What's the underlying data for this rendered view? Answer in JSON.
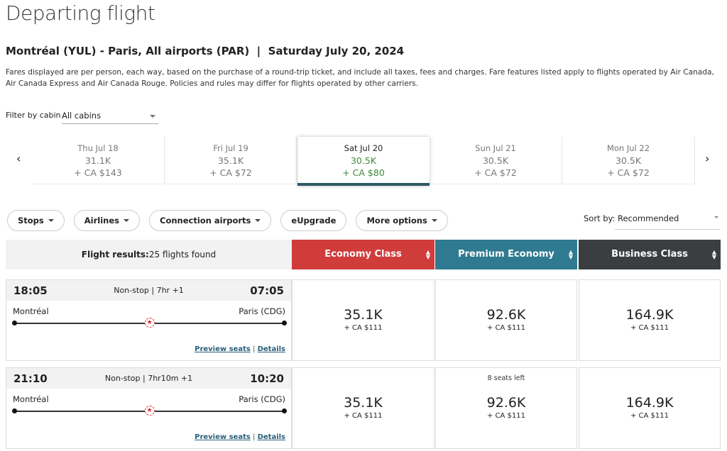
{
  "title": "Departing flight",
  "route": "Montréal (YUL) - Paris, All airports (PAR)  |  Saturday July 20, 2024",
  "description": "Fares displayed are per person, each way, based on the purchase of a round-trip ticket, and include all taxes, fees and charges. Fare features listed apply to flights operated by Air Canada, Air Canada Express and Air Canada Rouge. Policies and rules may differ for flights operated by other carriers.",
  "filter": {
    "label": "Filter by cabin",
    "value": "All cabins"
  },
  "dates": [
    {
      "day": "Thu Jul 18",
      "points": "31.1K",
      "cash": "+ CA $143",
      "selected": false
    },
    {
      "day": "Fri Jul 19",
      "points": "35.1K",
      "cash": "+ CA $72",
      "selected": false
    },
    {
      "day": "Sat Jul 20",
      "points": "30.5K",
      "cash": "+ CA $80",
      "selected": true
    },
    {
      "day": "Sun Jul 21",
      "points": "30.5K",
      "cash": "+ CA $72",
      "selected": false
    },
    {
      "day": "Mon Jul 22",
      "points": "30.5K",
      "cash": "+ CA $72",
      "selected": false
    }
  ],
  "nav": {
    "prev": "‹",
    "next": "›"
  },
  "pills": [
    {
      "label": "Stops",
      "caret": true
    },
    {
      "label": "Airlines",
      "caret": true
    },
    {
      "label": "Connection airports",
      "caret": true
    },
    {
      "label": "eUpgrade",
      "caret": false
    },
    {
      "label": "More options",
      "caret": true
    }
  ],
  "sort": {
    "label": "Sort by:",
    "value": "Recommended"
  },
  "results": {
    "label": "Flight results:",
    "count": "25 flights found"
  },
  "cabins": [
    {
      "label": "Economy Class",
      "color": "#d03c3a"
    },
    {
      "label": "Premium Economy",
      "color": "#2f7a91"
    },
    {
      "label": "Business Class",
      "color": "#3b3e41"
    }
  ],
  "flights": [
    {
      "dep": "18:05",
      "arr": "07:05",
      "info": "Non-stop | 7hr +1",
      "from": "Montréal",
      "to": "Paris (CDG)",
      "preview": "Preview seats",
      "sep": "|",
      "details": "Details",
      "fares": [
        {
          "points": "35.1K",
          "cash": "+ CA $111",
          "note": ""
        },
        {
          "points": "92.6K",
          "cash": "+ CA $111",
          "note": ""
        },
        {
          "points": "164.9K",
          "cash": "+ CA $111",
          "note": ""
        }
      ]
    },
    {
      "dep": "21:10",
      "arr": "10:20",
      "info": "Non-stop | 7hr10m +1",
      "from": "Montréal",
      "to": "Paris (CDG)",
      "preview": "Preview seats",
      "sep": "|",
      "details": "Details",
      "fares": [
        {
          "points": "35.1K",
          "cash": "+ CA $111",
          "note": ""
        },
        {
          "points": "92.6K",
          "cash": "+ CA $111",
          "note": "8 seats left"
        },
        {
          "points": "164.9K",
          "cash": "+ CA $111",
          "note": ""
        }
      ]
    }
  ]
}
